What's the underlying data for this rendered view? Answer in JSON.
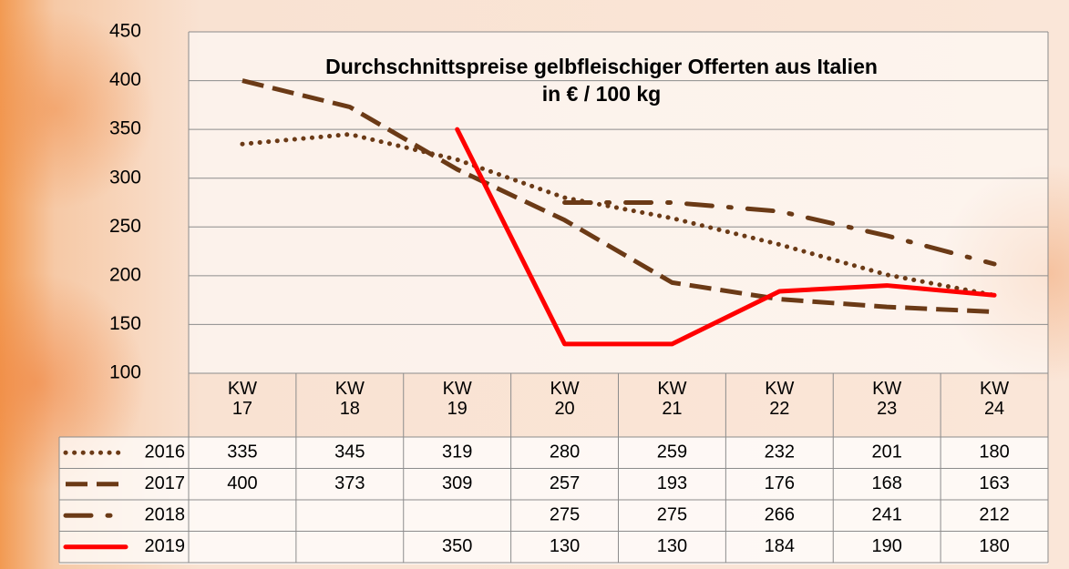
{
  "chart_data": {
    "type": "line",
    "title": "Durchschnittspreise gelbfleischiger Offerten aus Italien",
    "subtitle": "in € / 100 kg",
    "categories": [
      "KW 17",
      "KW 18",
      "KW 19",
      "KW 20",
      "KW 21",
      "KW 22",
      "KW 23",
      "KW 24"
    ],
    "series": [
      {
        "name": "2016",
        "color": "#6b3a16",
        "style": "dotted",
        "values": [
          335,
          345,
          319,
          280,
          259,
          232,
          201,
          180
        ]
      },
      {
        "name": "2017",
        "color": "#6b3a16",
        "style": "dashed",
        "values": [
          400,
          373,
          309,
          257,
          193,
          176,
          168,
          163
        ]
      },
      {
        "name": "2018",
        "color": "#6b3a16",
        "style": "dashdot",
        "values": [
          null,
          null,
          null,
          275,
          275,
          266,
          241,
          212
        ]
      },
      {
        "name": "2019",
        "color": "#ff0000",
        "style": "solid",
        "values": [
          null,
          null,
          350,
          130,
          130,
          184,
          190,
          180
        ]
      }
    ],
    "ylim": [
      100,
      450
    ],
    "yticks": [
      100,
      150,
      200,
      250,
      300,
      350,
      400,
      450
    ],
    "grid": true,
    "data_table": true
  }
}
